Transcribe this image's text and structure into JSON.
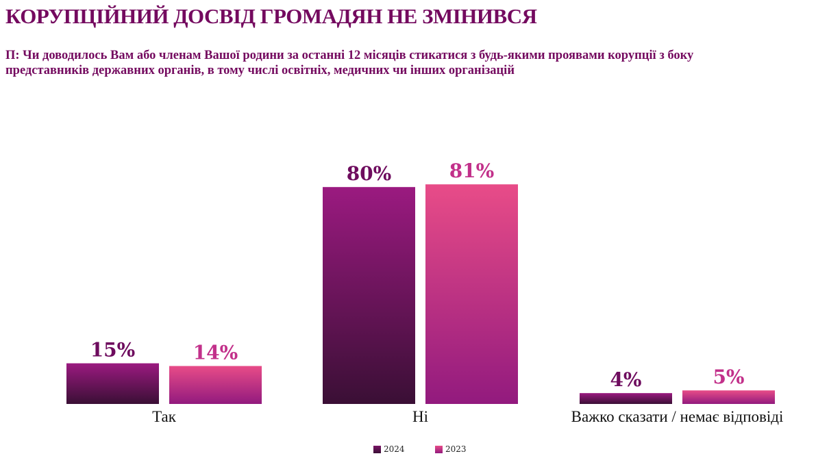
{
  "title": "КОРУПЦІЙНИЙ ДОСВІД ГРОМАДЯН НЕ ЗМІНИВСЯ",
  "question": "П: Чи доводилось Вам або членам Вашої родини за останні 12 місяців стикатися з будь-якими проявами корупції з боку представників державних органів, в тому числі освітніх, медичних чи інших організацій",
  "chart_data": {
    "type": "bar",
    "categories": [
      "Так",
      "Ні",
      "Важко сказати / немає відповіді"
    ],
    "series": [
      {
        "name": "2024",
        "values": [
          15,
          80,
          4
        ],
        "labels": [
          "15%",
          "80%",
          "4%"
        ],
        "color_top": "#9b1a80",
        "color_bottom": "#3a0f35",
        "label_color": "#6e0c5e"
      },
      {
        "name": "2023",
        "values": [
          14,
          81,
          5
        ],
        "labels": [
          "14%",
          "81%",
          "5%"
        ],
        "color_top": "#e84c88",
        "color_bottom": "#921a7e",
        "label_color": "#c2308a"
      }
    ],
    "ylim": [
      0,
      100
    ],
    "grid": false,
    "legend_position": "bottom"
  }
}
